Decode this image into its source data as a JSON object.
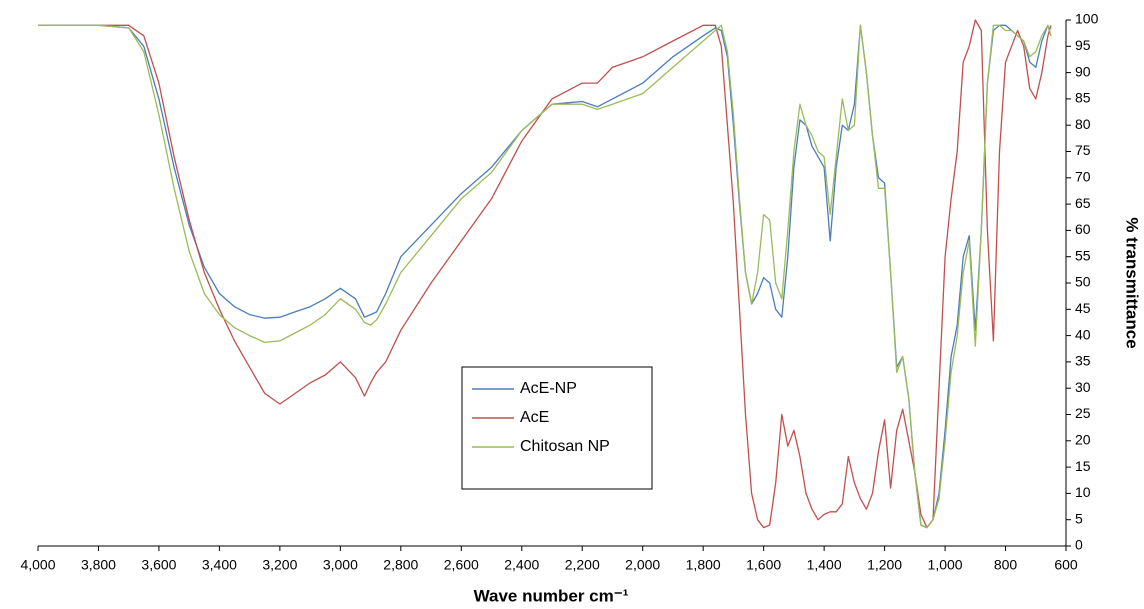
{
  "chart_data": {
    "type": "line",
    "x_label": "Wave number cm⁻¹",
    "y_label": "% transmittance",
    "x_reversed": true,
    "y_axis_side": "right",
    "x": [
      4000,
      3800,
      3700,
      3650,
      3600,
      3550,
      3500,
      3450,
      3400,
      3350,
      3300,
      3250,
      3200,
      3150,
      3100,
      3050,
      3000,
      2950,
      2920,
      2900,
      2880,
      2850,
      2800,
      2700,
      2600,
      2500,
      2400,
      2300,
      2200,
      2150,
      2100,
      2000,
      1900,
      1800,
      1760,
      1740,
      1720,
      1700,
      1680,
      1660,
      1640,
      1620,
      1600,
      1580,
      1560,
      1540,
      1520,
      1500,
      1480,
      1460,
      1440,
      1420,
      1400,
      1380,
      1360,
      1340,
      1320,
      1300,
      1280,
      1260,
      1240,
      1220,
      1200,
      1180,
      1160,
      1140,
      1120,
      1100,
      1080,
      1060,
      1040,
      1020,
      1000,
      980,
      960,
      940,
      920,
      900,
      880,
      860,
      840,
      820,
      800,
      780,
      760,
      740,
      720,
      700,
      680,
      660,
      650
    ],
    "series": [
      {
        "name": "AcE-NP",
        "color": "#4a7ebb",
        "values": [
          99,
          99,
          98.5,
          95,
          85,
          72,
          61,
          53,
          48,
          45.5,
          44,
          43.3,
          43.5,
          44.5,
          45.5,
          47,
          49,
          47,
          43.5,
          44,
          44.5,
          48,
          55,
          61,
          67,
          72,
          79,
          84,
          84.5,
          83.5,
          85,
          88,
          93,
          97,
          98.5,
          98,
          93,
          80,
          65,
          52,
          46,
          48,
          51,
          50,
          45,
          43.5,
          55,
          72,
          81,
          80,
          76,
          74,
          72,
          58,
          72,
          80,
          79,
          84,
          99,
          90,
          78,
          70,
          69,
          52,
          34,
          36,
          28,
          14,
          4,
          3.5,
          5,
          10,
          22,
          36,
          42,
          55,
          59,
          41,
          60,
          88,
          98,
          99,
          99,
          98,
          97,
          96,
          92,
          91,
          96,
          99,
          97
        ]
      },
      {
        "name": "AcE",
        "color": "#c0504d",
        "values": [
          99,
          99,
          99,
          97,
          88,
          74,
          62,
          52,
          45,
          39,
          34,
          29,
          27,
          29,
          31,
          32.5,
          35,
          32,
          28.5,
          31,
          33,
          35,
          41,
          50,
          58,
          66,
          77,
          85,
          88,
          88,
          91,
          93,
          96,
          99,
          99,
          95,
          80,
          65,
          45,
          25,
          10,
          5,
          3.5,
          4,
          12,
          25,
          19,
          22,
          17,
          10,
          7,
          5,
          6,
          6.5,
          6.5,
          8,
          17,
          12,
          9,
          7,
          10,
          18,
          24,
          11,
          22,
          26,
          20,
          14,
          6,
          3.5,
          5,
          30,
          55,
          66,
          75,
          92,
          95,
          100,
          98,
          60,
          39,
          75,
          92,
          95,
          98,
          95,
          87,
          85,
          90,
          97,
          99
        ]
      },
      {
        "name": "Chitosan NP",
        "color": "#9bbb59",
        "values": [
          99,
          99,
          98.5,
          94,
          82,
          68,
          56,
          48,
          44,
          41.5,
          40,
          38.7,
          39,
          40.5,
          42,
          44,
          47,
          45,
          42.5,
          42,
          43,
          46,
          52,
          59,
          66,
          71,
          79,
          84,
          84,
          83,
          84,
          86,
          91,
          96,
          98,
          99,
          94,
          82,
          66,
          52,
          46,
          52,
          63,
          62,
          50,
          47,
          60,
          75,
          84,
          80,
          78,
          75,
          74,
          63,
          74,
          85,
          79,
          80,
          99,
          90,
          78,
          68,
          68,
          52,
          33,
          36,
          28,
          14,
          4,
          3.5,
          5,
          9,
          20,
          33,
          40,
          52,
          58,
          38,
          60,
          88,
          99,
          99,
          98,
          98,
          97,
          96,
          93,
          94,
          97,
          99,
          97
        ]
      }
    ],
    "xlim": [
      4000,
      600
    ],
    "xticks": [
      {
        "value": 4000,
        "label": "4,000"
      },
      {
        "value": 3800,
        "label": "3,800"
      },
      {
        "value": 3600,
        "label": "3,600"
      },
      {
        "value": 3400,
        "label": "3,400"
      },
      {
        "value": 3200,
        "label": "3,200"
      },
      {
        "value": 3000,
        "label": "3,000"
      },
      {
        "value": 2800,
        "label": "2,800"
      },
      {
        "value": 2600,
        "label": "2,600"
      },
      {
        "value": 2400,
        "label": "2,400"
      },
      {
        "value": 2200,
        "label": "2,200"
      },
      {
        "value": 2000,
        "label": "2,000"
      },
      {
        "value": 1800,
        "label": "1,800"
      },
      {
        "value": 1600,
        "label": "1,600"
      },
      {
        "value": 1400,
        "label": "1,400"
      },
      {
        "value": 1200,
        "label": "1,200"
      },
      {
        "value": 1000,
        "label": "1,000"
      },
      800,
      600
    ],
    "ylim": [
      0,
      100
    ],
    "yticks": [
      0,
      5,
      10,
      15,
      20,
      25,
      30,
      35,
      40,
      45,
      50,
      55,
      60,
      65,
      70,
      75,
      80,
      85,
      90,
      95,
      100
    ]
  }
}
